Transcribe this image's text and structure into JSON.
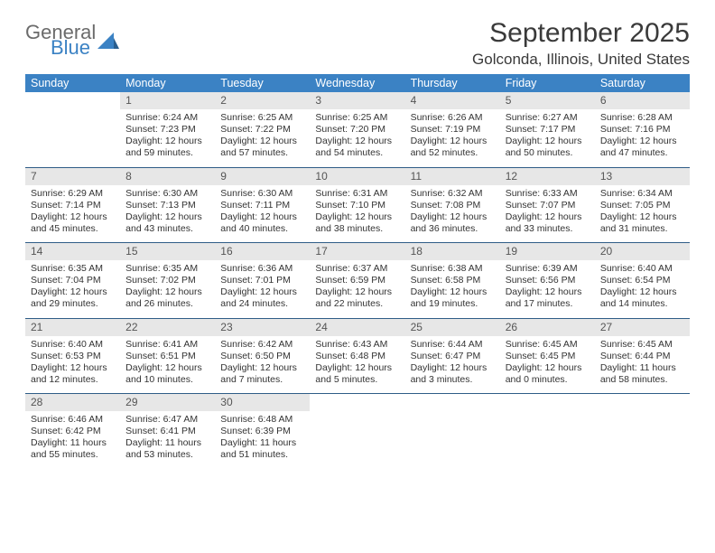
{
  "brand": {
    "word1": "General",
    "word2": "Blue"
  },
  "title": "September 2025",
  "location": "Golconda, Illinois, United States",
  "colors": {
    "header_bg": "#3b82c4",
    "header_text": "#ffffff",
    "daynum_bg": "#e7e7e7",
    "rule": "#2f5d87",
    "logo_grey": "#6b6b6b",
    "logo_blue": "#3b82c4"
  },
  "columns": [
    "Sunday",
    "Monday",
    "Tuesday",
    "Wednesday",
    "Thursday",
    "Friday",
    "Saturday"
  ],
  "labels": {
    "sunrise": "Sunrise:",
    "sunset": "Sunset:",
    "daylight": "Daylight:"
  },
  "weeks": [
    [
      null,
      {
        "n": "1",
        "sr": "6:24 AM",
        "ss": "7:23 PM",
        "dl": "12 hours and 59 minutes."
      },
      {
        "n": "2",
        "sr": "6:25 AM",
        "ss": "7:22 PM",
        "dl": "12 hours and 57 minutes."
      },
      {
        "n": "3",
        "sr": "6:25 AM",
        "ss": "7:20 PM",
        "dl": "12 hours and 54 minutes."
      },
      {
        "n": "4",
        "sr": "6:26 AM",
        "ss": "7:19 PM",
        "dl": "12 hours and 52 minutes."
      },
      {
        "n": "5",
        "sr": "6:27 AM",
        "ss": "7:17 PM",
        "dl": "12 hours and 50 minutes."
      },
      {
        "n": "6",
        "sr": "6:28 AM",
        "ss": "7:16 PM",
        "dl": "12 hours and 47 minutes."
      }
    ],
    [
      {
        "n": "7",
        "sr": "6:29 AM",
        "ss": "7:14 PM",
        "dl": "12 hours and 45 minutes."
      },
      {
        "n": "8",
        "sr": "6:30 AM",
        "ss": "7:13 PM",
        "dl": "12 hours and 43 minutes."
      },
      {
        "n": "9",
        "sr": "6:30 AM",
        "ss": "7:11 PM",
        "dl": "12 hours and 40 minutes."
      },
      {
        "n": "10",
        "sr": "6:31 AM",
        "ss": "7:10 PM",
        "dl": "12 hours and 38 minutes."
      },
      {
        "n": "11",
        "sr": "6:32 AM",
        "ss": "7:08 PM",
        "dl": "12 hours and 36 minutes."
      },
      {
        "n": "12",
        "sr": "6:33 AM",
        "ss": "7:07 PM",
        "dl": "12 hours and 33 minutes."
      },
      {
        "n": "13",
        "sr": "6:34 AM",
        "ss": "7:05 PM",
        "dl": "12 hours and 31 minutes."
      }
    ],
    [
      {
        "n": "14",
        "sr": "6:35 AM",
        "ss": "7:04 PM",
        "dl": "12 hours and 29 minutes."
      },
      {
        "n": "15",
        "sr": "6:35 AM",
        "ss": "7:02 PM",
        "dl": "12 hours and 26 minutes."
      },
      {
        "n": "16",
        "sr": "6:36 AM",
        "ss": "7:01 PM",
        "dl": "12 hours and 24 minutes."
      },
      {
        "n": "17",
        "sr": "6:37 AM",
        "ss": "6:59 PM",
        "dl": "12 hours and 22 minutes."
      },
      {
        "n": "18",
        "sr": "6:38 AM",
        "ss": "6:58 PM",
        "dl": "12 hours and 19 minutes."
      },
      {
        "n": "19",
        "sr": "6:39 AM",
        "ss": "6:56 PM",
        "dl": "12 hours and 17 minutes."
      },
      {
        "n": "20",
        "sr": "6:40 AM",
        "ss": "6:54 PM",
        "dl": "12 hours and 14 minutes."
      }
    ],
    [
      {
        "n": "21",
        "sr": "6:40 AM",
        "ss": "6:53 PM",
        "dl": "12 hours and 12 minutes."
      },
      {
        "n": "22",
        "sr": "6:41 AM",
        "ss": "6:51 PM",
        "dl": "12 hours and 10 minutes."
      },
      {
        "n": "23",
        "sr": "6:42 AM",
        "ss": "6:50 PM",
        "dl": "12 hours and 7 minutes."
      },
      {
        "n": "24",
        "sr": "6:43 AM",
        "ss": "6:48 PM",
        "dl": "12 hours and 5 minutes."
      },
      {
        "n": "25",
        "sr": "6:44 AM",
        "ss": "6:47 PM",
        "dl": "12 hours and 3 minutes."
      },
      {
        "n": "26",
        "sr": "6:45 AM",
        "ss": "6:45 PM",
        "dl": "12 hours and 0 minutes."
      },
      {
        "n": "27",
        "sr": "6:45 AM",
        "ss": "6:44 PM",
        "dl": "11 hours and 58 minutes."
      }
    ],
    [
      {
        "n": "28",
        "sr": "6:46 AM",
        "ss": "6:42 PM",
        "dl": "11 hours and 55 minutes."
      },
      {
        "n": "29",
        "sr": "6:47 AM",
        "ss": "6:41 PM",
        "dl": "11 hours and 53 minutes."
      },
      {
        "n": "30",
        "sr": "6:48 AM",
        "ss": "6:39 PM",
        "dl": "11 hours and 51 minutes."
      },
      null,
      null,
      null,
      null
    ]
  ]
}
